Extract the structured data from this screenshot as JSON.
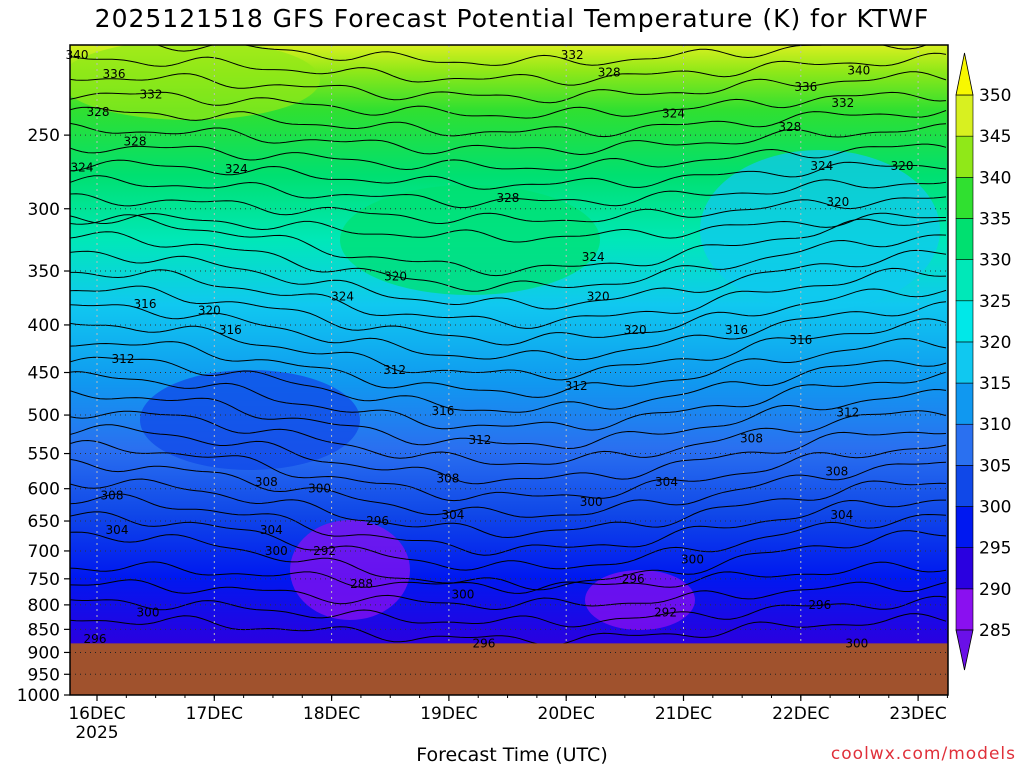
{
  "chart_data": {
    "type": "heatmap",
    "title": "2025121518 GFS Forecast Potential Temperature (K) for KTWF",
    "xlabel": "Forecast Time (UTC)",
    "ylabel": "",
    "x_ticks": [
      "16DEC",
      "17DEC",
      "18DEC",
      "19DEC",
      "20DEC",
      "21DEC",
      "22DEC",
      "23DEC"
    ],
    "x_tick_sublabel": "2025",
    "y_ticks": [
      250,
      300,
      350,
      400,
      450,
      500,
      550,
      600,
      650,
      700,
      750,
      800,
      850,
      900,
      950,
      1000
    ],
    "y_scale": "log-pressure",
    "y_range": [
      1000,
      200
    ],
    "ground_level_hPa": 880,
    "colorbar": {
      "levels": [
        285,
        290,
        295,
        300,
        305,
        310,
        315,
        320,
        325,
        330,
        335,
        340,
        345,
        350
      ],
      "colors": [
        "#6a10e8",
        "#8a10f0",
        "#2a00e0",
        "#0018f0",
        "#1048e8",
        "#2a70f0",
        "#1098f0",
        "#10c8f0",
        "#00e8e8",
        "#00e8b8",
        "#00e070",
        "#30e030",
        "#90e818",
        "#d8f020",
        "#f8f800"
      ]
    },
    "contour_labels": [
      {
        "label": "340",
        "x": "16DEC",
        "p": 205
      },
      {
        "label": "336",
        "x": "16DEC",
        "p": 215
      },
      {
        "label": "332",
        "x": "16DEC",
        "p": 226
      },
      {
        "label": "328",
        "x": "16DEC",
        "p": 236
      },
      {
        "label": "328",
        "x": "16DEC",
        "p": 254
      },
      {
        "label": "324",
        "x": "16DEC",
        "p": 271
      },
      {
        "label": "324",
        "x": "17DEC",
        "p": 272
      },
      {
        "label": "328",
        "x": "19DEC",
        "p": 292
      },
      {
        "label": "332",
        "x": "20DEC",
        "p": 205
      },
      {
        "label": "328",
        "x": "20DEC",
        "p": 214
      },
      {
        "label": "324",
        "x": "21DEC",
        "p": 237
      },
      {
        "label": "324",
        "x": "20DEC",
        "p": 338
      },
      {
        "label": "320",
        "x": "18DEC",
        "p": 355
      },
      {
        "label": "324",
        "x": "18DEC",
        "p": 373
      },
      {
        "label": "316",
        "x": "16DEC",
        "p": 380
      },
      {
        "label": "320",
        "x": "17DEC",
        "p": 386
      },
      {
        "label": "320",
        "x": "20DEC",
        "p": 373
      },
      {
        "label": "320",
        "x": "20DEC",
        "p": 405
      },
      {
        "label": "316",
        "x": "17DEC",
        "p": 405
      },
      {
        "label": "316",
        "x": "21DEC",
        "p": 405
      },
      {
        "label": "316",
        "x": "22DEC",
        "p": 415
      },
      {
        "label": "320",
        "x": "22DEC",
        "p": 295
      },
      {
        "label": "320",
        "x": "23DEC",
        "p": 270
      },
      {
        "label": "324",
        "x": "22DEC",
        "p": 270
      },
      {
        "label": "340",
        "x": "22DEC",
        "p": 213
      },
      {
        "label": "336",
        "x": "22DEC",
        "p": 222
      },
      {
        "label": "332",
        "x": "22DEC",
        "p": 231
      },
      {
        "label": "328",
        "x": "22DEC",
        "p": 245
      },
      {
        "label": "312",
        "x": "16DEC",
        "p": 435
      },
      {
        "label": "312",
        "x": "18DEC",
        "p": 447
      },
      {
        "label": "312",
        "x": "20DEC",
        "p": 465
      },
      {
        "label": "312",
        "x": "22DEC",
        "p": 497
      },
      {
        "label": "316",
        "x": "19DEC",
        "p": 495
      },
      {
        "label": "312",
        "x": "19DEC",
        "p": 532
      },
      {
        "label": "308",
        "x": "21DEC",
        "p": 530
      },
      {
        "label": "308",
        "x": "16DEC",
        "p": 610
      },
      {
        "label": "308",
        "x": "17DEC",
        "p": 590
      },
      {
        "label": "308",
        "x": "19DEC",
        "p": 585
      },
      {
        "label": "308",
        "x": "22DEC",
        "p": 575
      },
      {
        "label": "304",
        "x": "21DEC",
        "p": 590
      },
      {
        "label": "304",
        "x": "16DEC",
        "p": 665
      },
      {
        "label": "304",
        "x": "17DEC",
        "p": 665
      },
      {
        "label": "304",
        "x": "19DEC",
        "p": 640
      },
      {
        "label": "304",
        "x": "22DEC",
        "p": 640
      },
      {
        "label": "300",
        "x": "18DEC",
        "p": 600
      },
      {
        "label": "300",
        "x": "20DEC",
        "p": 620
      },
      {
        "label": "300",
        "x": "17DEC",
        "p": 700
      },
      {
        "label": "300",
        "x": "21DEC",
        "p": 715
      },
      {
        "label": "296",
        "x": "18DEC",
        "p": 650
      },
      {
        "label": "292",
        "x": "18DEC",
        "p": 700
      },
      {
        "label": "288",
        "x": "18DEC",
        "p": 760
      },
      {
        "label": "296",
        "x": "20DEC",
        "p": 750
      },
      {
        "label": "300",
        "x": "19DEC",
        "p": 780
      },
      {
        "label": "300",
        "x": "16DEC",
        "p": 815
      },
      {
        "label": "296",
        "x": "16DEC",
        "p": 870
      },
      {
        "label": "296",
        "x": "19DEC",
        "p": 880
      },
      {
        "label": "292",
        "x": "21DEC",
        "p": 815
      },
      {
        "label": "296",
        "x": "22DEC",
        "p": 800
      },
      {
        "label": "300",
        "x": "22DEC",
        "p": 880
      }
    ]
  },
  "credit": "coolwx.com/models"
}
